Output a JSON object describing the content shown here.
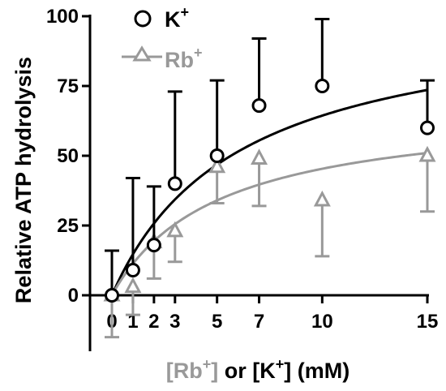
{
  "chart_data": {
    "type": "scatter",
    "ylabel": "Relative ATP hydrolysis",
    "xlabel": {
      "part1": "[Rb",
      "sup1": "+",
      "part2": "]",
      "part3": " or [K",
      "sup2": "+",
      "part4": "] (mM)"
    },
    "x_ticks": [
      0,
      1,
      2,
      3,
      5,
      7,
      10,
      15
    ],
    "y_ticks": [
      0,
      25,
      50,
      75,
      100
    ],
    "ylim": [
      -20,
      100
    ],
    "xlim": [
      0,
      15
    ],
    "grid": false,
    "legend_position": "top-left",
    "series": [
      {
        "name": "K",
        "name_sup": "+",
        "marker": "circle",
        "color": "#000000",
        "error_direction": "up",
        "points": [
          {
            "x": 0,
            "y": 0,
            "err": 16
          },
          {
            "x": 1,
            "y": 9,
            "err": 33
          },
          {
            "x": 2,
            "y": 18,
            "err": 21
          },
          {
            "x": 3,
            "y": 40,
            "err": 33
          },
          {
            "x": 5,
            "y": 50,
            "err": 27
          },
          {
            "x": 7,
            "y": 68,
            "err": 24
          },
          {
            "x": 10,
            "y": 75,
            "err": 24
          },
          {
            "x": 15,
            "y": 60,
            "err": 17
          }
        ],
        "fit": {
          "vmax": 103,
          "km": 6
        }
      },
      {
        "name": "Rb",
        "name_sup": "+",
        "marker": "triangle",
        "color": "#999999",
        "error_direction": "down",
        "points": [
          {
            "x": 0,
            "y": 0,
            "err": 15
          },
          {
            "x": 1,
            "y": 3,
            "err": 10
          },
          {
            "x": 2,
            "y": 19,
            "err": 13
          },
          {
            "x": 3,
            "y": 23,
            "err": 11
          },
          {
            "x": 5,
            "y": 46,
            "err": 13
          },
          {
            "x": 7,
            "y": 49,
            "err": 17
          },
          {
            "x": 10,
            "y": 34,
            "err": 20
          },
          {
            "x": 15,
            "y": 50,
            "err": 20
          }
        ],
        "fit": {
          "vmax": 68,
          "km": 5
        }
      }
    ]
  }
}
